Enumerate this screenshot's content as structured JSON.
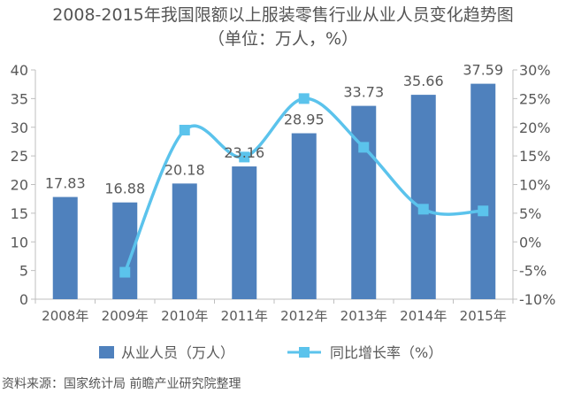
{
  "title": "2008-2015年我国限额以上服装零售行业从业人员变化趋势图",
  "subtitle": "（单位：万人，%）",
  "source": "资料来源：国家统计局 前瞻产业研究院整理",
  "colors": {
    "bar": "#4f81bd",
    "line": "#5bc3ec",
    "axis": "#bfbfbf",
    "text": "#595959"
  },
  "chart_data": {
    "type": "bar",
    "categories": [
      "2008年",
      "2009年",
      "2010年",
      "2011年",
      "2012年",
      "2013年",
      "2014年",
      "2015年"
    ],
    "series": [
      {
        "name": "从业人员（万人）",
        "type": "bar",
        "axis": "left",
        "values": [
          17.83,
          16.88,
          20.18,
          23.16,
          28.95,
          33.73,
          35.66,
          37.59
        ],
        "labels": [
          "17.83",
          "16.88",
          "20.18",
          "23.16",
          "28.95",
          "33.73",
          "35.66",
          "37.59"
        ]
      },
      {
        "name": "同比增长率（%）",
        "type": "line",
        "axis": "right",
        "marker": "square",
        "values": [
          null,
          -5.3,
          19.5,
          14.8,
          25.0,
          16.5,
          5.7,
          5.4
        ]
      }
    ],
    "y_left": {
      "min": 0,
      "max": 40,
      "step": 5,
      "ticks": [
        "0",
        "5",
        "10",
        "15",
        "20",
        "25",
        "30",
        "35",
        "40"
      ]
    },
    "y_right": {
      "min": -10,
      "max": 30,
      "step": 5,
      "ticks": [
        "-10%",
        "-5%",
        "0%",
        "5%",
        "10%",
        "15%",
        "20%",
        "25%",
        "30%"
      ]
    },
    "grid": false,
    "legend_position": "bottom"
  }
}
